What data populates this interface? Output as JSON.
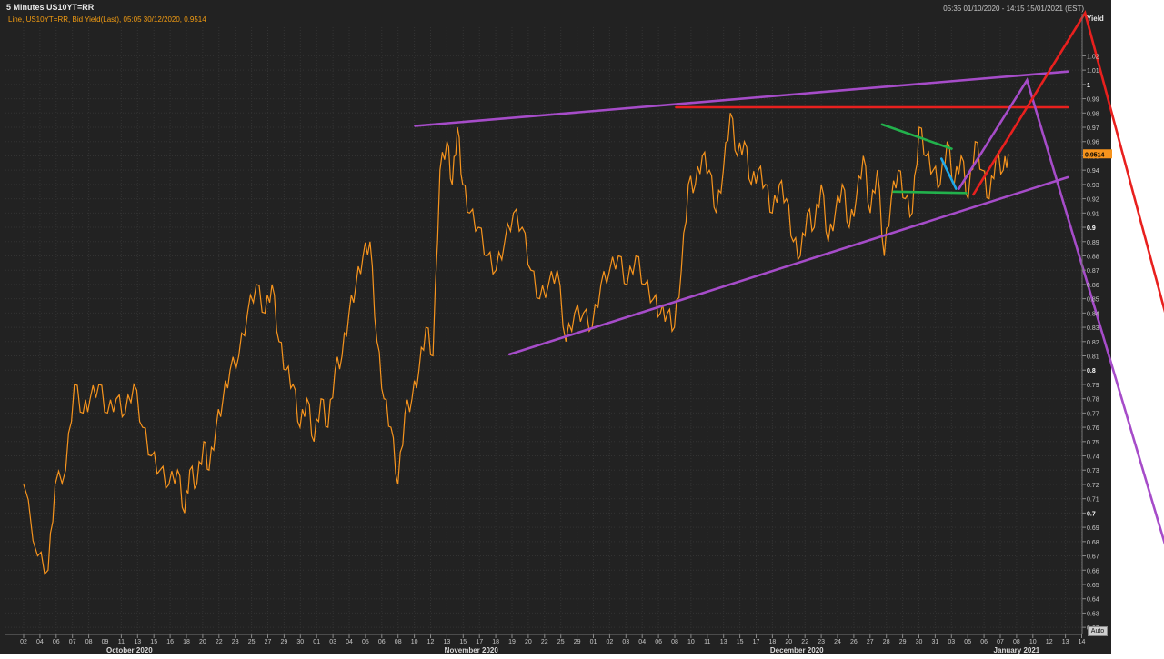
{
  "header": {
    "title": "5 Minutes US10YT=RR",
    "subtitle": "Line, US10YT=RR, Bid Yield(Last), 05:05 30/12/2020, 0.9514",
    "range": "05:35 01/10/2020 - 14:15 15/01/2021 (EST)"
  },
  "axis_controls": {
    "auto_label": "Auto"
  },
  "colors": {
    "background": "#222222",
    "grid": "#333333",
    "series": "#f7941d",
    "annotation_purple": "#a64cc9",
    "annotation_red": "#e8201e",
    "annotation_green": "#22b14c",
    "annotation_blue": "#1fa8e8",
    "last_value_bg": "#f7941d"
  },
  "chart_data": {
    "type": "line",
    "title": "5 Minutes US10YT=RR",
    "ylabel": "Yield",
    "ylim": [
      0.615,
      1.04
    ],
    "yticks": [
      0.62,
      0.63,
      0.64,
      0.65,
      0.66,
      0.67,
      0.68,
      0.69,
      0.7,
      0.71,
      0.72,
      0.73,
      0.74,
      0.75,
      0.76,
      0.77,
      0.78,
      0.79,
      0.8,
      0.81,
      0.82,
      0.83,
      0.84,
      0.85,
      0.86,
      0.87,
      0.88,
      0.89,
      0.9,
      0.91,
      0.92,
      0.93,
      0.94,
      0.95,
      0.96,
      0.97,
      0.98,
      0.99,
      1,
      1.01,
      1.02
    ],
    "bold_yticks": [
      0.7,
      0.8,
      0.9,
      1
    ],
    "xlim": [
      0,
      104
    ],
    "x_ticks": [
      {
        "i": 1,
        "label": "02"
      },
      {
        "i": 2,
        "label": "04"
      },
      {
        "i": 3,
        "label": "06"
      },
      {
        "i": 4,
        "label": "07"
      },
      {
        "i": 5,
        "label": "08"
      },
      {
        "i": 6,
        "label": "09"
      },
      {
        "i": 7,
        "label": "11"
      },
      {
        "i": 8,
        "label": "13"
      },
      {
        "i": 9,
        "label": "15"
      },
      {
        "i": 10,
        "label": "16"
      },
      {
        "i": 11,
        "label": "18"
      },
      {
        "i": 12,
        "label": "20"
      },
      {
        "i": 13,
        "label": "22"
      },
      {
        "i": 14,
        "label": "23"
      },
      {
        "i": 15,
        "label": "25"
      },
      {
        "i": 16,
        "label": "27"
      },
      {
        "i": 17,
        "label": "29"
      },
      {
        "i": 18,
        "label": "30"
      },
      {
        "i": 19,
        "label": "01"
      },
      {
        "i": 20,
        "label": "03"
      },
      {
        "i": 21,
        "label": "04"
      },
      {
        "i": 22,
        "label": "05"
      },
      {
        "i": 23,
        "label": "06"
      },
      {
        "i": 24,
        "label": "08"
      },
      {
        "i": 25,
        "label": "10"
      },
      {
        "i": 26,
        "label": "12"
      },
      {
        "i": 27,
        "label": "13"
      },
      {
        "i": 28,
        "label": "15"
      },
      {
        "i": 29,
        "label": "17"
      },
      {
        "i": 30,
        "label": "18"
      },
      {
        "i": 31,
        "label": "19"
      },
      {
        "i": 32,
        "label": "20"
      },
      {
        "i": 33,
        "label": "22"
      },
      {
        "i": 34,
        "label": "25"
      },
      {
        "i": 35,
        "label": "29"
      },
      {
        "i": 36,
        "label": "01"
      },
      {
        "i": 37,
        "label": "02"
      },
      {
        "i": 38,
        "label": "03"
      },
      {
        "i": 39,
        "label": "04"
      },
      {
        "i": 40,
        "label": "06"
      },
      {
        "i": 41,
        "label": "08"
      },
      {
        "i": 42,
        "label": "10"
      },
      {
        "i": 43,
        "label": "11"
      },
      {
        "i": 44,
        "label": "13"
      },
      {
        "i": 45,
        "label": "15"
      },
      {
        "i": 46,
        "label": "17"
      },
      {
        "i": 47,
        "label": "18"
      },
      {
        "i": 48,
        "label": "20"
      },
      {
        "i": 49,
        "label": "22"
      },
      {
        "i": 50,
        "label": "23"
      },
      {
        "i": 51,
        "label": "24"
      },
      {
        "i": 52,
        "label": "26"
      },
      {
        "i": 53,
        "label": "27"
      },
      {
        "i": 54,
        "label": "28"
      },
      {
        "i": 55,
        "label": "29"
      },
      {
        "i": 56,
        "label": "30"
      },
      {
        "i": 57,
        "label": "31"
      },
      {
        "i": 58,
        "label": "03"
      },
      {
        "i": 59,
        "label": "05"
      },
      {
        "i": 60,
        "label": "06"
      },
      {
        "i": 61,
        "label": "07"
      },
      {
        "i": 62,
        "label": "08"
      },
      {
        "i": 63,
        "label": "10"
      },
      {
        "i": 64,
        "label": "12"
      },
      {
        "i": 65,
        "label": "13"
      },
      {
        "i": 66,
        "label": "14"
      }
    ],
    "month_labels": [
      {
        "i": 7.5,
        "label": "October 2020"
      },
      {
        "i": 28.5,
        "label": "November 2020"
      },
      {
        "i": 48.5,
        "label": "December 2020"
      },
      {
        "i": 62,
        "label": "January 2021"
      }
    ],
    "series": [
      {
        "name": "US10YT=RR Bid Yield",
        "x": [
          0,
          0.8,
          1.4,
          1.8,
          2.4,
          2.9,
          3.4,
          3.8,
          4.3,
          4.8,
          5.3,
          5.8,
          6.3,
          6.8,
          7.3,
          7.8,
          8.3,
          8.8,
          9.2,
          9.5,
          9.9,
          10.3,
          10.6,
          11.0,
          11.4,
          11.8,
          12.3,
          12.8,
          13.3,
          13.8,
          14.2,
          14.6,
          15.0,
          15.4,
          15.8,
          16.2,
          16.6,
          17.0,
          17.4,
          17.8,
          18.2,
          18.6,
          19.0,
          19.4,
          19.8,
          20.2,
          20.6,
          21.0,
          21.4,
          21.8,
          22.2,
          22.6,
          23.0,
          23.4,
          23.8,
          24.2,
          24.5,
          24.8,
          25.1,
          25.5,
          26.0,
          26.5,
          27.0,
          27.5,
          28.0,
          28.5,
          29.0,
          29.5,
          30.0,
          30.5,
          31.0,
          31.5,
          32.0,
          32.5,
          33.0,
          33.5,
          34.0,
          34.5,
          35.0,
          35.5,
          36.0,
          36.4,
          36.8,
          37.2,
          37.6,
          38.0,
          38.4,
          38.8,
          39.2,
          39.6,
          40.0,
          40.4,
          40.8,
          41.2,
          41.6,
          42.0,
          42.4,
          42.8,
          43.2,
          43.6,
          44.0,
          44.4,
          44.8,
          45.2,
          45.6,
          46.0,
          46.4,
          46.8,
          47.2,
          47.6,
          48.0,
          48.4,
          48.8,
          49.2,
          49.6,
          50.0,
          50.4,
          50.8,
          51.2,
          51.6,
          52.0,
          52.4,
          52.8,
          53.2,
          53.6,
          54.0,
          54.4,
          54.8,
          55.2,
          55.6,
          56.0,
          56.3
        ],
        "values": [
          0.72,
          0.67,
          0.66,
          0.72,
          0.73,
          0.79,
          0.77,
          0.78,
          0.79,
          0.77,
          0.78,
          0.77,
          0.79,
          0.76,
          0.74,
          0.73,
          0.72,
          0.73,
          0.7,
          0.73,
          0.72,
          0.75,
          0.73,
          0.76,
          0.78,
          0.8,
          0.81,
          0.84,
          0.86,
          0.84,
          0.86,
          0.82,
          0.8,
          0.79,
          0.76,
          0.78,
          0.75,
          0.78,
          0.76,
          0.8,
          0.81,
          0.84,
          0.86,
          0.88,
          0.89,
          0.82,
          0.78,
          0.76,
          0.72,
          0.77,
          0.78,
          0.8,
          0.83,
          0.81,
          0.94,
          0.96,
          0.93,
          0.97,
          0.93,
          0.91,
          0.9,
          0.88,
          0.87,
          0.89,
          0.91,
          0.9,
          0.87,
          0.85,
          0.86,
          0.87,
          0.82,
          0.84,
          0.84,
          0.83,
          0.86,
          0.87,
          0.88,
          0.86,
          0.88,
          0.86,
          0.85,
          0.84,
          0.84,
          0.83,
          0.87,
          0.93,
          0.93,
          0.95,
          0.94,
          0.91,
          0.94,
          0.98,
          0.95,
          0.96,
          0.93,
          0.94,
          0.93,
          0.91,
          0.93,
          0.92,
          0.89,
          0.88,
          0.91,
          0.9,
          0.93,
          0.89,
          0.91,
          0.93,
          0.9,
          0.92,
          0.95,
          0.91,
          0.94,
          0.88,
          0.92,
          0.94,
          0.92,
          0.91,
          0.97,
          0.95,
          0.94,
          0.93,
          0.96,
          0.93,
          0.95,
          0.92,
          0.96,
          0.94,
          0.92,
          0.95,
          0.94,
          0.9514
        ]
      }
    ],
    "last_value": 0.9514,
    "last_value_label": "0.9514",
    "annotations": [
      {
        "color": "purple",
        "x": [
          28,
          73
        ],
        "y": [
          0.971,
          1.009
        ]
      },
      {
        "color": "purple",
        "x": [
          34.5,
          73
        ],
        "y": [
          0.811,
          0.935
        ]
      },
      {
        "color": "red",
        "x": [
          46,
          73
        ],
        "y": [
          0.984,
          0.984
        ]
      },
      {
        "color": "green",
        "x": [
          60.2,
          65
        ],
        "y": [
          0.972,
          0.955
        ]
      },
      {
        "color": "green",
        "x": [
          61,
          66
        ],
        "y": [
          0.925,
          0.924
        ]
      },
      {
        "color": "blue",
        "x": [
          64.3,
          65.3
        ],
        "y": [
          0.948,
          0.927
        ]
      },
      {
        "color": "purple",
        "x": [
          65.5,
          70.2,
          82
        ],
        "y": [
          0.927,
          1.003,
          0.6
        ]
      },
      {
        "color": "red",
        "x": [
          66.5,
          74.2,
          85
        ],
        "y": [
          0.923,
          1.05,
          0.64
        ]
      }
    ]
  }
}
